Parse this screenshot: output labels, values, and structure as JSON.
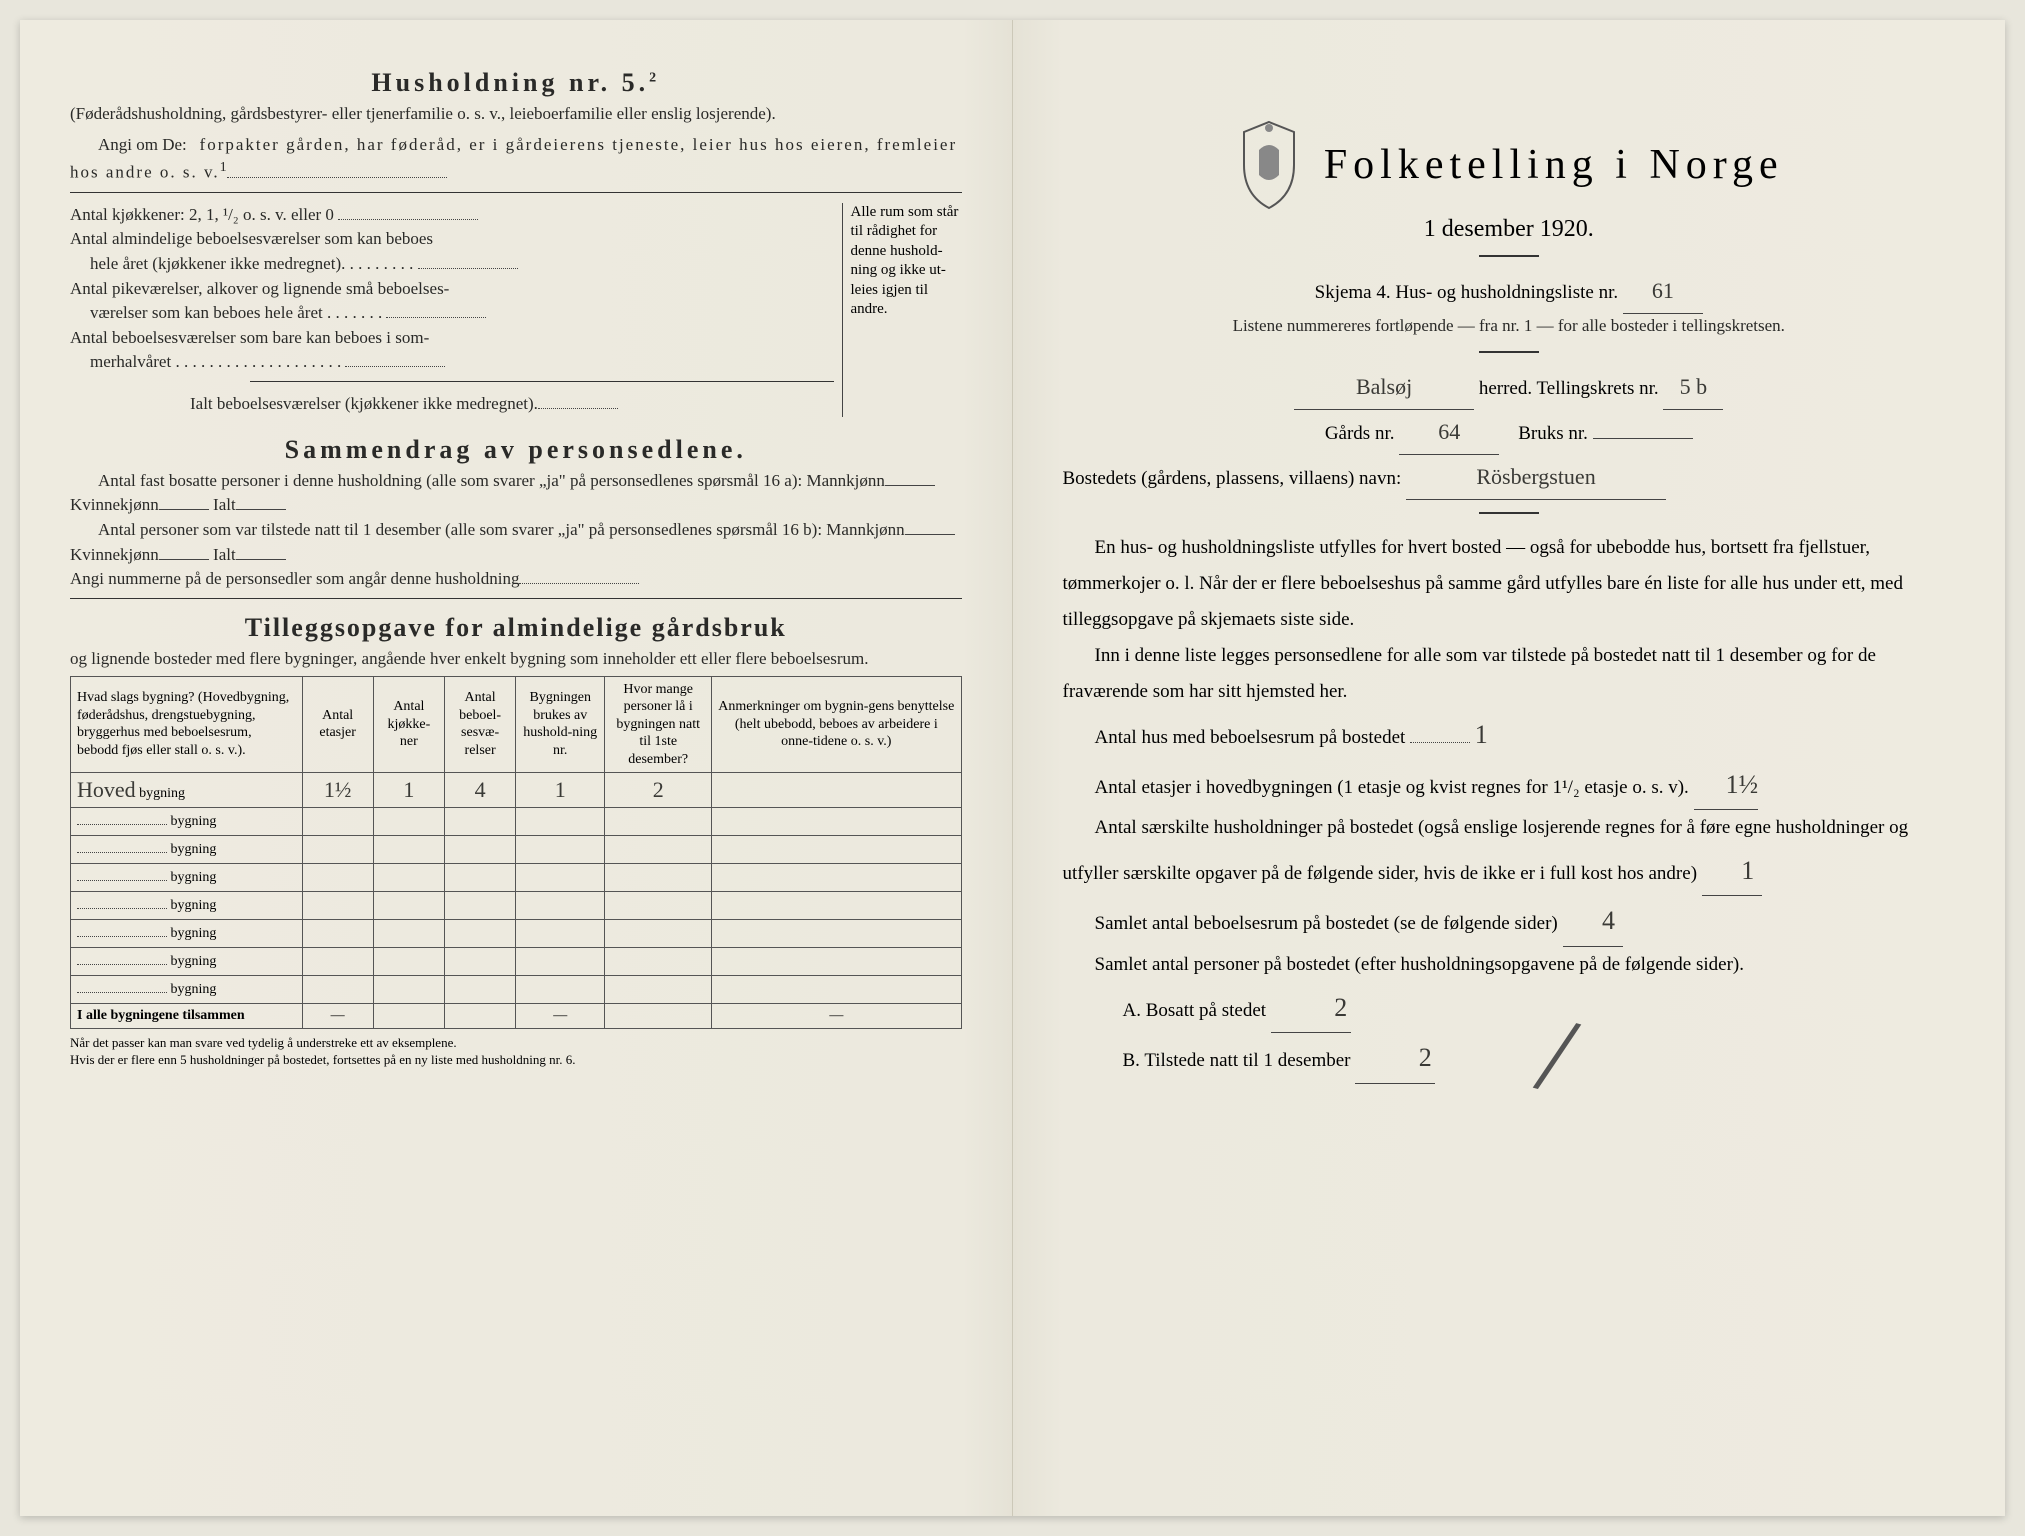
{
  "left": {
    "h5_title": "Husholdning nr. 5.",
    "h5_sup": "2",
    "h5_desc": "(Føderådshusholdning, gårdsbestyrer- eller tjenerfamilie o. s. v., leieboerfamilie eller enslig losjerende).",
    "angi_label": "Angi om De:",
    "angi_text": "forpakter gården, har føderåd, er i gårdeierens tjeneste, leier hus hos eieren, fremleier hos andre o. s. v.",
    "angi_sup": "1",
    "kitchens": {
      "line1": "Antal kjøkkener: 2, 1, ¹/₂ o. s. v. eller 0",
      "line2a": "Antal almindelige beboelsesværelser som kan beboes",
      "line2b": "hele året (kjøkkener ikke medregnet).",
      "line3a": "Antal pikeværelser, alkover og lignende små beboelses-",
      "line3b": "værelser som kan beboes hele året",
      "line4a": "Antal beboelsesværelser som bare kan beboes i som-",
      "line4b": "merhalvåret",
      "total": "Ialt beboelsesværelser (kjøkkener ikke medregnet).",
      "brace_text": "Alle rum som står til rådighet for denne hushold-ning og ikke ut-leies igjen til andre."
    },
    "sammendrag": {
      "title": "Sammendrag av personsedlene.",
      "p1a": "Antal fast bosatte personer i denne husholdning (alle som svarer „ja\" på personsedlenes spørsmål 16 a): Mannkjønn",
      "kvinne": "Kvinnekjønn",
      "ialt": "Ialt",
      "p2a": "Antal personer som var tilstede natt til 1 desember (alle som svarer „ja\" på personsedlenes spørsmål 16 b): Mannkjønn",
      "angi_num": "Angi nummerne på de personsedler som angår denne husholdning"
    },
    "tillegg": {
      "title": "Tilleggsopgave for almindelige gårdsbruk",
      "sub": "og lignende bosteder med flere bygninger, angående hver enkelt bygning som inneholder ett eller flere beboelsesrum."
    },
    "table": {
      "headers": [
        "Hvad slags bygning?\n(Hovedbygning, føderådshus, drengstuebygning, bryggerhus med beboelsesrum, bebodd fjøs eller stall o. s. v.).",
        "Antal etasjer",
        "Antal kjøkke-ner",
        "Antal beboel-sesvæ-relser",
        "Bygningen brukes av hushold-ning nr.",
        "Hvor mange personer lå i bygningen natt til 1ste desember?",
        "Anmerkninger om bygnin-gens benyttelse (helt ubebodd, beboes av arbeidere i onne-tidene o. s. v.)"
      ],
      "row1": {
        "name": "Hoved",
        "suffix": "bygning",
        "etasjer": "1½",
        "kjokken": "1",
        "beboel": "4",
        "brukes": "1",
        "personer": "2",
        "anm": ""
      },
      "empty_rows": 7,
      "totalrow": "I alle bygningene tilsammen",
      "dash": "—"
    },
    "footnote": "Når det passer kan man svare ved tydelig å understreke ett av eksemplene.\nHvis der er flere enn 5 husholdninger på bostedet, fortsettes på en ny liste med husholdning nr. 6."
  },
  "right": {
    "title": "Folketelling i Norge",
    "subtitle": "1 desember 1920.",
    "skjema": "Skjema 4.   Hus- og husholdningsliste nr.",
    "skjema_val": "61",
    "listene": "Listene nummereres fortløpende — fra nr. 1 — for alle bosteder i tellingskretsen.",
    "herred_hand": "Balsøj",
    "herred_label": "herred.   Tellingskrets nr.",
    "krets_val": "5 b",
    "gards_label": "Gårds nr.",
    "gards_val": "64",
    "bruks_label": "Bruks nr.",
    "bruks_val": "",
    "bosted_label": "Bostedets (gårdens, plassens, villaens) navn:",
    "bosted_val": "Rösbergstuen",
    "para1": "En hus- og husholdningsliste utfylles for hvert bosted — også for ubebodde hus, bortsett fra fjellstuer, tømmerkojer o. l.  Når der er flere beboelseshus på samme gård utfylles bare én liste for alle hus under ett, med tilleggsopgave på skjemaets siste side.",
    "para2": "Inn i denne liste legges personsedlene for alle som var tilstede på bostedet natt til 1 desember og for de fraværende som har sitt hjemsted her.",
    "q1": "Antal hus med beboelsesrum på bostedet",
    "q1_val": "1",
    "q2": "Antal etasjer i hovedbygningen (1 etasje og kvist regnes for 1¹/₂ etasje o. s. v).",
    "q2_val": "1½",
    "q3": "Antal særskilte husholdninger på bostedet (også enslige losjerende regnes for å føre egne husholdninger og utfyller særskilte opgaver på de følgende sider, hvis de ikke er i full kost hos andre)",
    "q3_val": "1",
    "q4": "Samlet antal beboelsesrum på bostedet (se de følgende sider)",
    "q4_val": "4",
    "q5": "Samlet antal personer på bostedet (efter husholdningsopgavene på de følgende sider).",
    "qA": "A.  Bosatt på stedet",
    "qA_val": "2",
    "qB": "B.  Tilstede natt til 1 desember",
    "qB_val": "2"
  },
  "colors": {
    "paper": "#eeebe0",
    "ink": "#2a2a28",
    "hand": "#3a3a36"
  }
}
